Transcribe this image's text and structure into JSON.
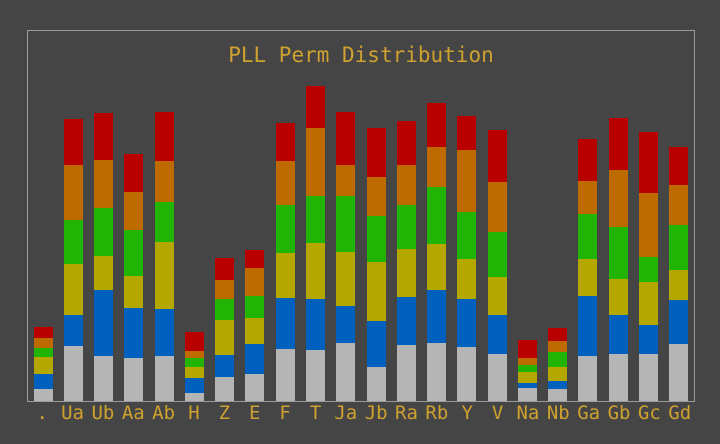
{
  "window": {
    "title": "PLL Perm Distribution"
  },
  "colors": {
    "background": "#454545",
    "frame_border": "#9c9c9c",
    "text": "#cfa12f",
    "segment_silver": "#b5b5b5",
    "segment_blue": "#0060bd",
    "segment_yellow": "#b4a700",
    "segment_green": "#21b404",
    "segment_orange": "#bd6b00",
    "segment_red": "#b90000"
  },
  "chart_data": {
    "type": "bar",
    "stacked": true,
    "title": "PLL Perm Distribution",
    "xlabel": "",
    "ylabel": "",
    "grid": false,
    "legend_position": "none",
    "y_axis_ticks_visible": false,
    "value_unit": "relative height (pixels, no y-axis labels shown)",
    "ylim": [
      0,
      371
    ],
    "categories": [
      ".",
      "Ua",
      "Ub",
      "Aa",
      "Ab",
      "H",
      "Z",
      "E",
      "F",
      "T",
      "Ja",
      "Jb",
      "Ra",
      "Rb",
      "Y",
      "V",
      "Na",
      "Nb",
      "Ga",
      "Gb",
      "Gc",
      "Gd"
    ],
    "series_order_note": "bottom to top",
    "series": [
      {
        "name": "silver",
        "color": "#b5b5b5",
        "values": [
          12,
          55,
          45,
          43,
          45,
          8,
          24,
          27,
          52,
          51,
          58,
          34,
          56,
          58,
          54,
          47,
          13,
          12,
          45,
          47,
          47,
          57
        ]
      },
      {
        "name": "blue",
        "color": "#0060bd",
        "values": [
          15,
          31,
          66,
          50,
          47,
          15,
          22,
          30,
          51,
          51,
          37,
          46,
          48,
          53,
          48,
          39,
          5,
          8,
          60,
          39,
          29,
          44
        ]
      },
      {
        "name": "yellow",
        "color": "#b4a700",
        "values": [
          17,
          51,
          34,
          32,
          67,
          11,
          35,
          26,
          45,
          56,
          54,
          59,
          48,
          46,
          40,
          38,
          11,
          14,
          37,
          36,
          43,
          30
        ]
      },
      {
        "name": "green",
        "color": "#21b404",
        "values": [
          9,
          44,
          48,
          46,
          40,
          9,
          21,
          22,
          48,
          47,
          56,
          46,
          44,
          57,
          47,
          45,
          7,
          15,
          45,
          52,
          25,
          45
        ]
      },
      {
        "name": "orange",
        "color": "#bd6b00",
        "values": [
          10,
          55,
          48,
          38,
          41,
          7,
          19,
          28,
          44,
          68,
          31,
          39,
          40,
          40,
          62,
          50,
          7,
          11,
          33,
          57,
          64,
          40
        ]
      },
      {
        "name": "red",
        "color": "#b90000",
        "values": [
          11,
          46,
          47,
          38,
          49,
          19,
          22,
          18,
          38,
          42,
          53,
          49,
          44,
          44,
          34,
          52,
          18,
          13,
          42,
          52,
          61,
          38
        ]
      }
    ],
    "totals": [
      74,
      282,
      288,
      247,
      289,
      69,
      143,
      151,
      278,
      315,
      289,
      273,
      280,
      298,
      285,
      271,
      61,
      73,
      262,
      283,
      269,
      254
    ]
  }
}
